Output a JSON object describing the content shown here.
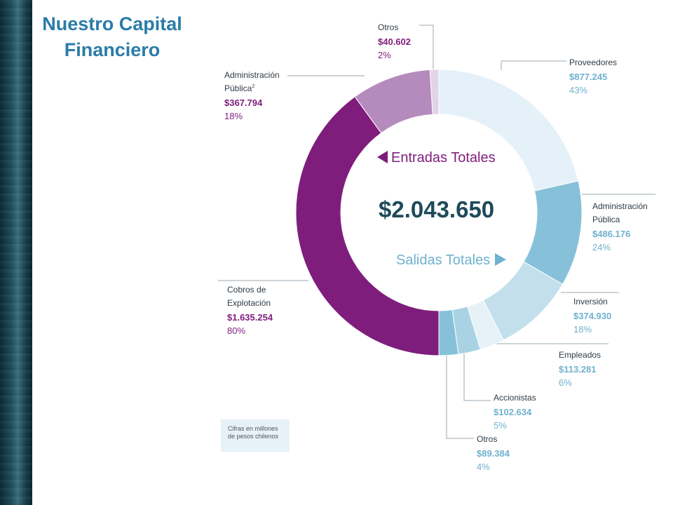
{
  "title": {
    "line1": "Nuestro Capital",
    "line2": "Financiero"
  },
  "center": {
    "entradas_label": "Entradas Totales",
    "total": "$2.043.650",
    "salidas_label": "Salidas Totales"
  },
  "note": {
    "line1": "Cifras en millones",
    "line2": "de pesos chilenos"
  },
  "colors": {
    "title": "#2a7ca8",
    "entradas": "#7f1d7c",
    "salidas": "#86c1d9",
    "total": "#1e4a5a"
  },
  "chart_data": {
    "type": "donut",
    "total": 2043650,
    "salidas": [
      {
        "name": "Proveedores",
        "value": 877245,
        "value_label": "$877.245",
        "pct": "43%",
        "color": "#e5f1f8"
      },
      {
        "name": "Administración Pública",
        "line1": "Administración",
        "line2": "Pública",
        "value": 486176,
        "value_label": "$486.176",
        "pct": "24%",
        "color": "#86c1d9"
      },
      {
        "name": "Inversión",
        "value": 374930,
        "value_label": "$374.930",
        "pct": "18%",
        "color": "#c3dfec"
      },
      {
        "name": "Empleados",
        "value": 113281,
        "value_label": "$113.281",
        "pct": "6%",
        "color": "#e6f2f8"
      },
      {
        "name": "Accionistas",
        "value": 102634,
        "value_label": "$102.634",
        "pct": "5%",
        "color": "#a9d3e4"
      },
      {
        "name": "Otros",
        "value": 89384,
        "value_label": "$89.384",
        "pct": "4%",
        "color": "#86c1d9"
      }
    ],
    "entradas": [
      {
        "name": "Cobros de Explotación",
        "line1": "Cobros de",
        "line2": "Explotación",
        "value": 1635254,
        "value_label": "$1.635.254",
        "pct": "80%",
        "color": "#7f1d7c"
      },
      {
        "name": "Administración Pública",
        "line1": "Administración",
        "line2": "Pública",
        "sup": "2",
        "value": 367794,
        "value_label": "$367.794",
        "pct": "18%",
        "color": "#b58bbd"
      },
      {
        "name": "Otros",
        "value": 40602,
        "value_label": "$40.602",
        "pct": "2%",
        "color": "#e3d3e6"
      }
    ]
  }
}
